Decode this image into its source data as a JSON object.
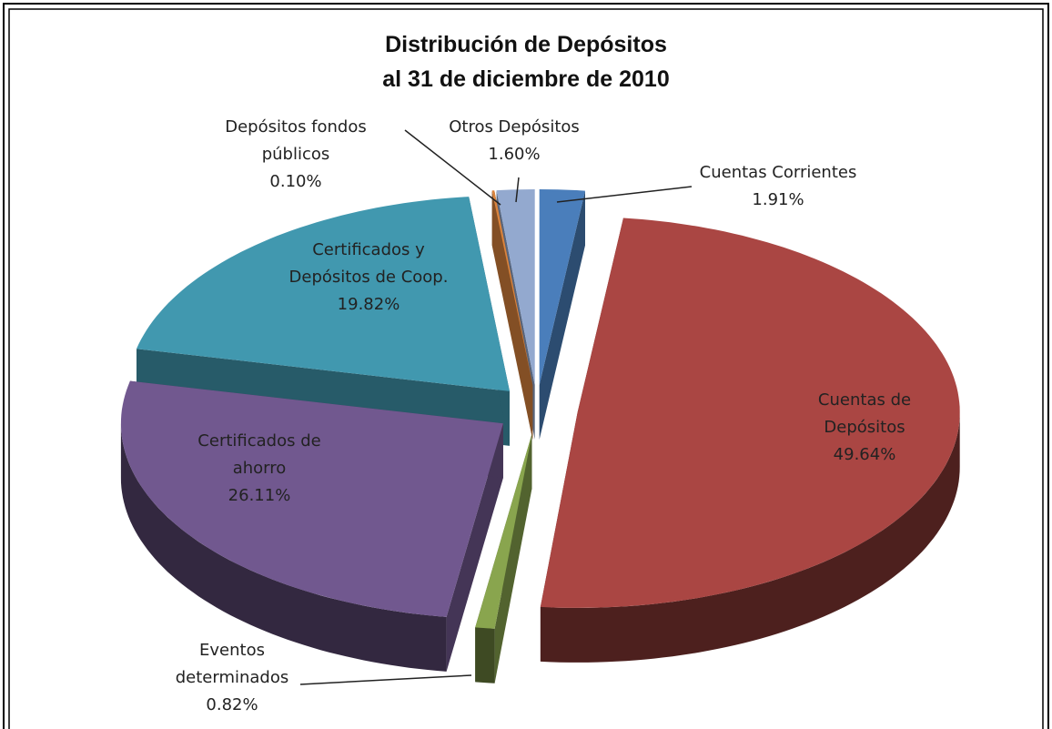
{
  "chart_data": {
    "type": "pie",
    "title": "Distribución de Depósitos al 31 de diciembre de 2010",
    "categories": [
      "Cuentas Corrientes",
      "Cuentas de Depósitos",
      "Eventos determinados",
      "Certificados de ahorro",
      "Certificados y Depósitos de Coop.",
      "Depósitos fondos públicos",
      "Otros Depósitos"
    ],
    "values": [
      1.91,
      49.64,
      0.82,
      26.11,
      19.82,
      0.1,
      1.6
    ],
    "value_labels": [
      "1.91%",
      "49.64%",
      "0.82%",
      "26.11%",
      "19.82%",
      "0.10%",
      "1.60%"
    ],
    "colors": [
      "#4a7ebb",
      "#aa4643",
      "#89a54e",
      "#71588f",
      "#4198af",
      "#db843d",
      "#93a9cf"
    ]
  }
}
